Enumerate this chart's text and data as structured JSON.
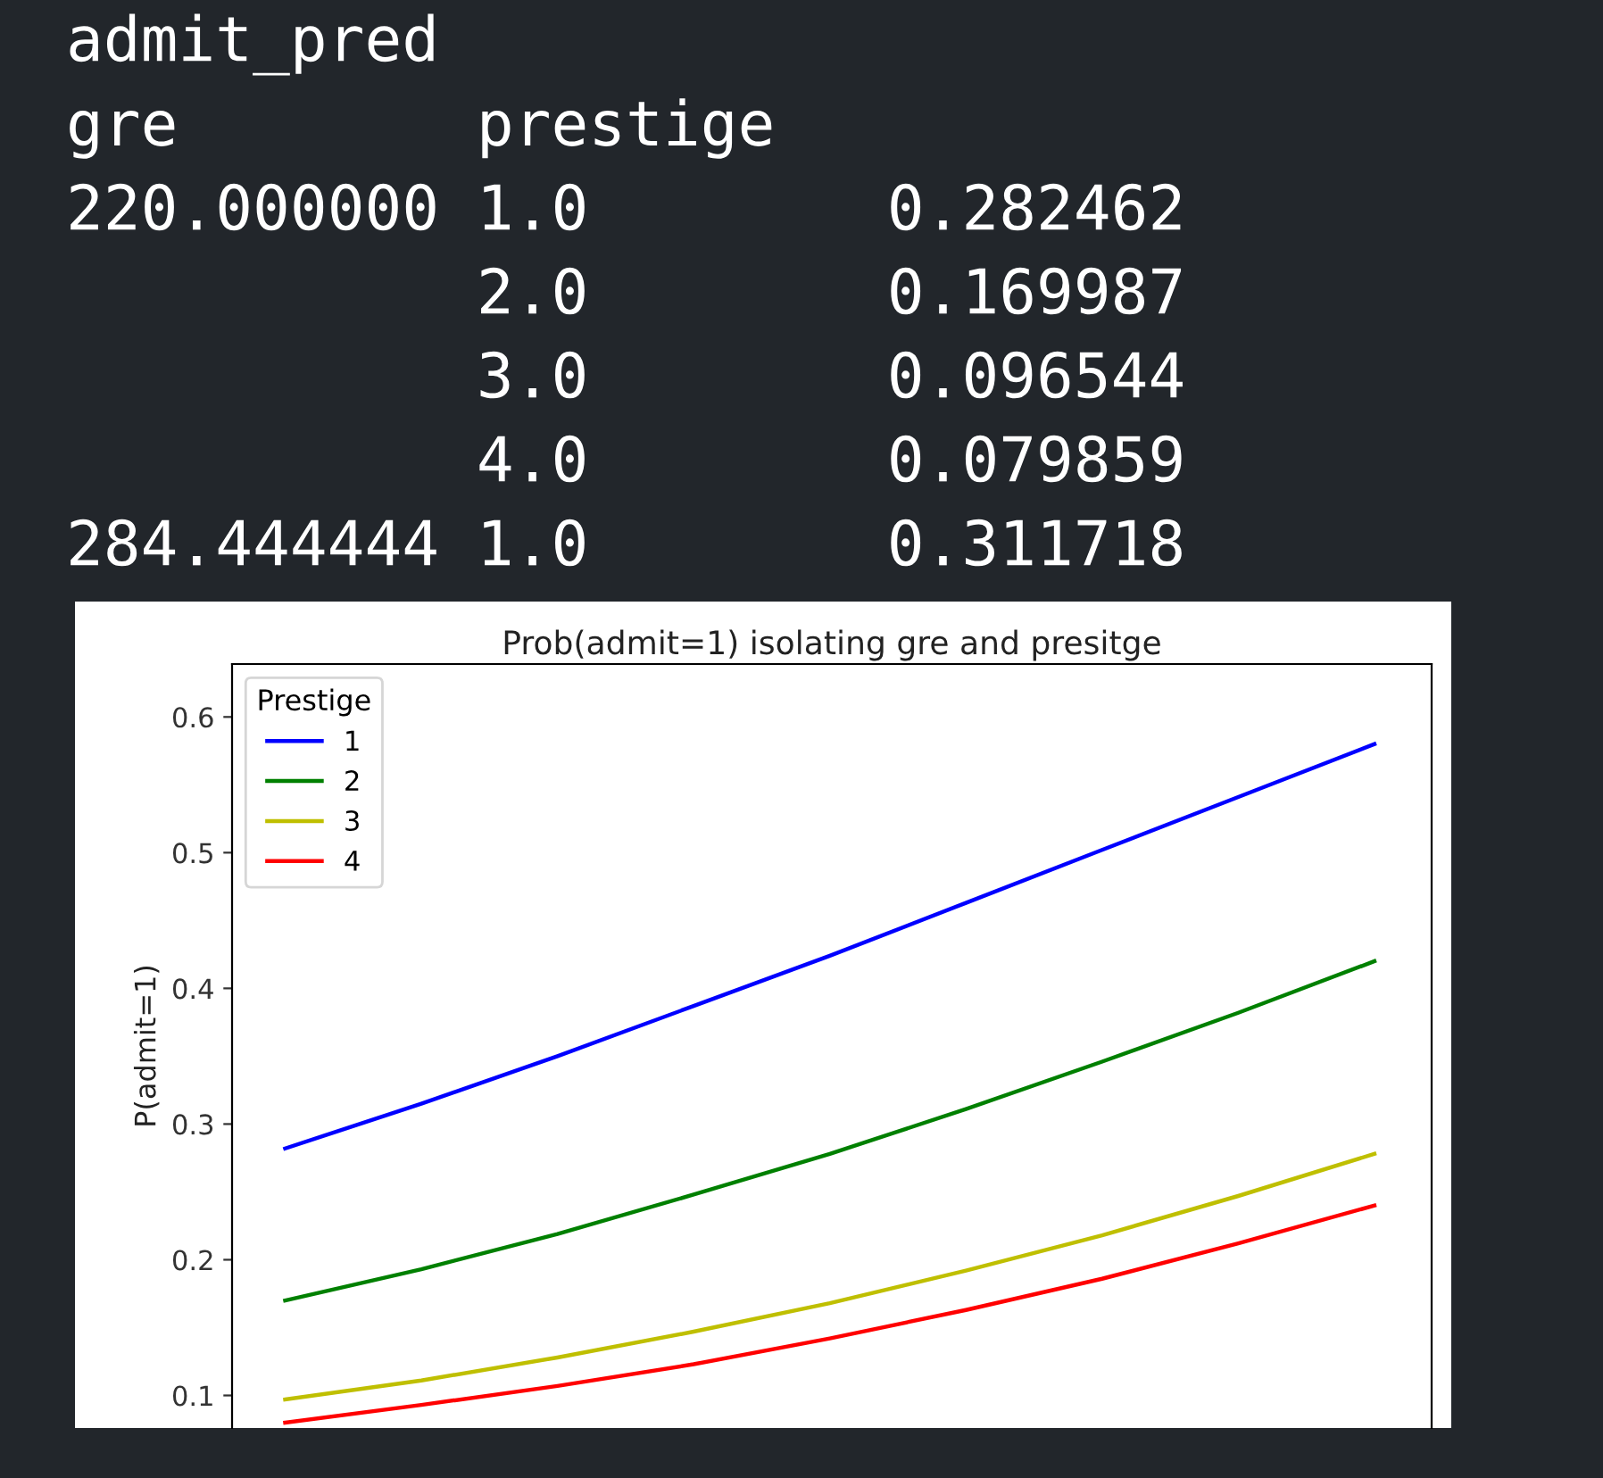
{
  "chart_data": {
    "type": "line",
    "title": "Prob(admit=1) isolating gre and presitge",
    "ylabel": "P(admit=1)",
    "legend_title": "Prestige",
    "legend": "top left",
    "grid": false,
    "marker": "none",
    "line_style": "solid",
    "tick_labels": "y",
    "annotations": [
      "admit_pred",
      "gre        prestige",
      "220.000000 1.0        0.282462",
      "           2.0        0.169987",
      "           3.0        0.096544",
      "           4.0        0.079859",
      "284.444444 1.0        0.311718"
    ],
    "categories": [
      null,
      null,
      null,
      null,
      null,
      null,
      null,
      null,
      null
    ],
    "ylim": [
      0.076,
      0.639
    ],
    "yticks": [
      0.1,
      0.2,
      0.3,
      0.4,
      0.5,
      0.6
    ],
    "series": [
      {
        "name": "1",
        "color": "#0000ff",
        "values": [
          0.282,
          0.315,
          0.35,
          0.387,
          0.424,
          0.463,
          0.502,
          0.541,
          0.58
        ]
      },
      {
        "name": "2",
        "color": "#008000",
        "values": [
          0.17,
          0.193,
          0.219,
          0.248,
          0.278,
          0.311,
          0.346,
          0.382,
          0.42
        ]
      },
      {
        "name": "3",
        "color": "#bfbf00",
        "values": [
          0.097,
          0.111,
          0.128,
          0.147,
          0.168,
          0.192,
          0.218,
          0.247,
          0.278
        ]
      },
      {
        "name": "4",
        "color": "#ff0000",
        "values": [
          0.08,
          0.093,
          0.107,
          0.123,
          0.142,
          0.163,
          0.186,
          0.212,
          0.24
        ]
      }
    ]
  }
}
